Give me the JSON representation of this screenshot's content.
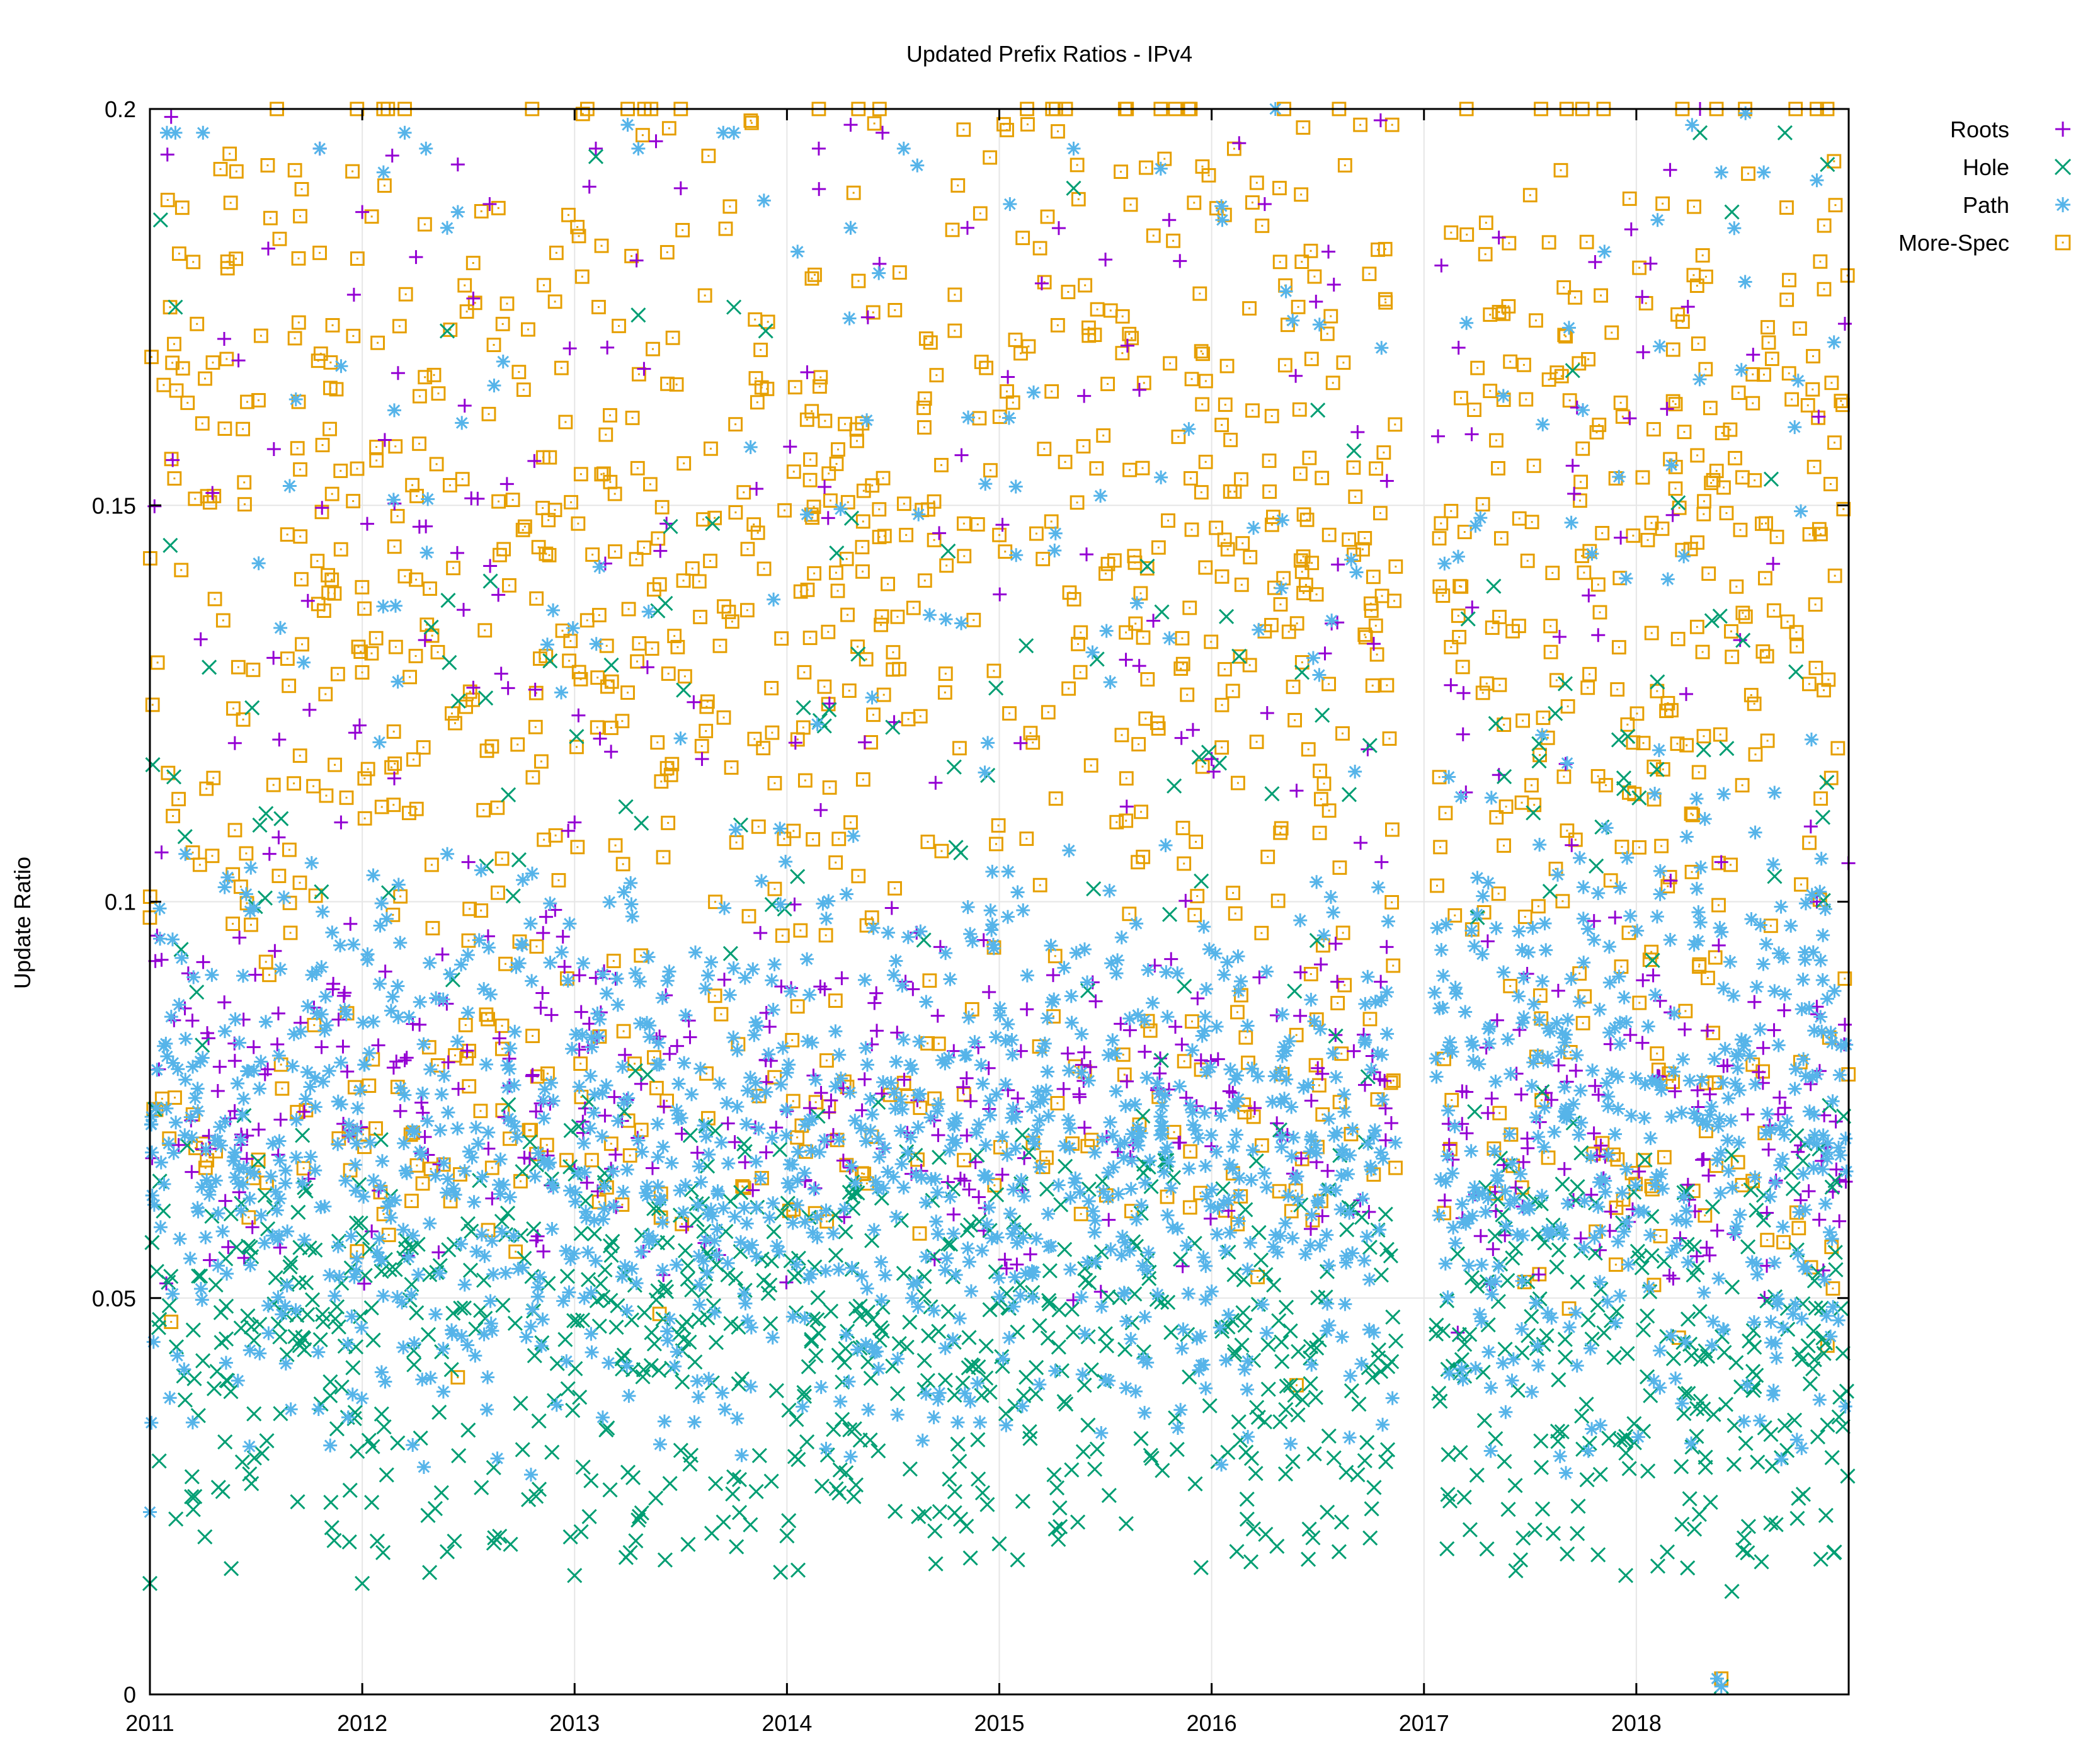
{
  "chart_data": {
    "type": "scatter",
    "title": "Updated Prefix Ratios - IPv4",
    "xlabel": "",
    "ylabel": "Update Ratio",
    "xlim": [
      2011,
      2019
    ],
    "ylim": [
      0,
      0.2
    ],
    "x_ticks": [
      "2011",
      "2012",
      "2013",
      "2014",
      "2015",
      "2016",
      "2017",
      "2018"
    ],
    "y_ticks": [
      "0",
      "0.05",
      "0.1",
      "0.15",
      "0.2"
    ],
    "grid": true,
    "legend_position": "outside-top-right",
    "data_gap": [
      2016.87,
      2017.05
    ],
    "series": [
      {
        "name": "Roots",
        "marker": "plus",
        "color": "#9400d3",
        "points": [
          [
            2011.1,
            0.199
          ],
          [
            2011.35,
            0.171
          ],
          [
            2011.8,
            0.195
          ],
          [
            2012.0,
            0.187
          ],
          [
            2012.45,
            0.193
          ],
          [
            2012.6,
            0.188
          ],
          [
            2013.1,
            0.195
          ],
          [
            2013.5,
            0.19
          ],
          [
            2014.15,
            0.195
          ],
          [
            2014.3,
            0.198
          ],
          [
            2014.45,
            0.197
          ],
          [
            2014.85,
            0.185
          ],
          [
            2015.2,
            0.178
          ],
          [
            2015.5,
            0.181
          ],
          [
            2015.8,
            0.186
          ],
          [
            2016.25,
            0.188
          ],
          [
            2016.55,
            0.182
          ],
          [
            2017.7,
            0.155
          ],
          [
            2018.3,
            0.2
          ],
          [
            2018.55,
            0.169
          ],
          [
            2011.4,
            0.12
          ],
          [
            2011.9,
            0.11
          ],
          [
            2012.5,
            0.105
          ],
          [
            2013.0,
            0.11
          ],
          [
            2013.6,
            0.118
          ],
          [
            2014.2,
            0.125
          ],
          [
            2014.7,
            0.115
          ],
          [
            2015.1,
            0.12
          ],
          [
            2015.6,
            0.112
          ],
          [
            2016.0,
            0.118
          ],
          [
            2016.4,
            0.114
          ],
          [
            2016.8,
            0.105
          ],
          [
            2017.3,
            0.095
          ],
          [
            2017.9,
            0.098
          ],
          [
            2018.4,
            0.105
          ],
          [
            2018.85,
            0.1
          ],
          [
            2011.2,
            0.085
          ],
          [
            2011.6,
            0.082
          ],
          [
            2012.2,
            0.08
          ],
          [
            2012.8,
            0.078
          ],
          [
            2013.4,
            0.083
          ],
          [
            2013.9,
            0.08
          ],
          [
            2014.4,
            0.082
          ],
          [
            2014.95,
            0.079
          ],
          [
            2015.4,
            0.081
          ],
          [
            2015.95,
            0.08
          ],
          [
            2016.5,
            0.079
          ],
          [
            2017.2,
            0.076
          ],
          [
            2017.6,
            0.075
          ],
          [
            2018.1,
            0.078
          ],
          [
            2018.7,
            0.074
          ]
        ],
        "density": [
          [
            2011.0,
            2016.87,
            0.055,
            0.095,
            320
          ],
          [
            2017.05,
            2019.0,
            0.05,
            0.09,
            120
          ],
          [
            2011.0,
            2016.87,
            0.095,
            0.19,
            110
          ],
          [
            2017.05,
            2019.0,
            0.09,
            0.19,
            40
          ]
        ]
      },
      {
        "name": "Hole",
        "marker": "cross",
        "color": "#009e73",
        "points": [
          [
            2011.05,
            0.186
          ],
          [
            2011.12,
            0.175
          ],
          [
            2012.4,
            0.172
          ],
          [
            2013.1,
            0.194
          ],
          [
            2013.3,
            0.174
          ],
          [
            2013.75,
            0.175
          ],
          [
            2013.9,
            0.172
          ],
          [
            2015.35,
            0.19
          ],
          [
            2016.5,
            0.162
          ],
          [
            2017.7,
            0.167
          ],
          [
            2018.3,
            0.197
          ],
          [
            2018.45,
            0.187
          ],
          [
            2018.7,
            0.197
          ],
          [
            2018.9,
            0.193
          ],
          [
            2011.0,
            0.014
          ],
          [
            2012.0,
            0.014
          ],
          [
            2012.4,
            0.018
          ],
          [
            2013.0,
            0.015
          ],
          [
            2014.0,
            0.02
          ],
          [
            2015.0,
            0.019
          ],
          [
            2015.95,
            0.016
          ],
          [
            2016.6,
            0.018
          ],
          [
            2017.95,
            0.015
          ],
          [
            2018.45,
            0.013
          ],
          [
            2018.4,
            0.001
          ]
        ],
        "density": [
          [
            2011.0,
            2016.87,
            0.025,
            0.07,
            620
          ],
          [
            2017.05,
            2019.0,
            0.022,
            0.07,
            220
          ],
          [
            2011.0,
            2016.87,
            0.015,
            0.03,
            90
          ],
          [
            2017.05,
            2019.0,
            0.015,
            0.03,
            35
          ],
          [
            2011.0,
            2016.87,
            0.07,
            0.15,
            90
          ],
          [
            2017.05,
            2019.0,
            0.07,
            0.15,
            35
          ]
        ]
      },
      {
        "name": "Path",
        "marker": "star",
        "color": "#56b4e9",
        "points": [
          [
            2011.08,
            0.197
          ],
          [
            2011.12,
            0.197
          ],
          [
            2011.25,
            0.197
          ],
          [
            2011.8,
            0.195
          ],
          [
            2012.1,
            0.192
          ],
          [
            2012.2,
            0.197
          ],
          [
            2012.3,
            0.195
          ],
          [
            2012.4,
            0.185
          ],
          [
            2012.45,
            0.187
          ],
          [
            2013.25,
            0.198
          ],
          [
            2013.3,
            0.195
          ],
          [
            2013.7,
            0.197
          ],
          [
            2013.75,
            0.197
          ],
          [
            2014.05,
            0.182
          ],
          [
            2014.3,
            0.185
          ],
          [
            2014.55,
            0.195
          ],
          [
            2015.05,
            0.188
          ],
          [
            2015.35,
            0.195
          ],
          [
            2016.05,
            0.186
          ],
          [
            2016.3,
            0.2
          ],
          [
            2016.35,
            0.177
          ],
          [
            2017.2,
            0.173
          ],
          [
            2017.85,
            0.182
          ],
          [
            2018.1,
            0.186
          ],
          [
            2018.4,
            0.192
          ],
          [
            2018.6,
            0.192
          ],
          [
            2018.85,
            0.191
          ],
          [
            2011.0,
            0.023
          ],
          [
            2014.3,
            0.03
          ],
          [
            2018.4,
            0.001
          ],
          [
            2018.38,
            0.002
          ]
        ],
        "density": [
          [
            2011.0,
            2016.87,
            0.035,
            0.1,
            1150
          ],
          [
            2017.05,
            2019.0,
            0.035,
            0.105,
            420
          ],
          [
            2011.0,
            2016.87,
            0.1,
            0.19,
            80
          ],
          [
            2017.05,
            2019.0,
            0.1,
            0.19,
            40
          ]
        ]
      },
      {
        "name": "More-Spec",
        "marker": "square-dot",
        "color": "#e69f00",
        "points": [
          [
            2012.1,
            0.2
          ],
          [
            2012.2,
            0.2
          ],
          [
            2012.8,
            0.2
          ],
          [
            2013.25,
            0.2
          ],
          [
            2013.5,
            0.2
          ],
          [
            2014.15,
            0.2
          ],
          [
            2015.25,
            0.2
          ],
          [
            2015.6,
            0.2
          ],
          [
            2015.9,
            0.2
          ],
          [
            2016.6,
            0.2
          ],
          [
            2016.7,
            0.198
          ],
          [
            2016.85,
            0.198
          ],
          [
            2017.2,
            0.2
          ],
          [
            2018.75,
            0.2
          ],
          [
            2018.85,
            0.2
          ],
          [
            2018.4,
            0.002
          ],
          [
            2016.4,
            0.039
          ],
          [
            2012.45,
            0.04
          ],
          [
            2013.4,
            0.048
          ],
          [
            2011.1,
            0.047
          ],
          [
            2018.2,
            0.045
          ],
          [
            2018.9,
            0.044
          ],
          [
            2011.0,
            0.098
          ],
          [
            2014.3,
            0.11
          ],
          [
            2014.4,
            0.098
          ]
        ],
        "density": [
          [
            2011.0,
            2016.87,
            0.085,
            0.2,
            780
          ],
          [
            2017.05,
            2019.0,
            0.085,
            0.2,
            290
          ],
          [
            2011.0,
            2016.87,
            0.055,
            0.085,
            170
          ],
          [
            2017.05,
            2019.0,
            0.05,
            0.085,
            55
          ]
        ]
      }
    ]
  }
}
